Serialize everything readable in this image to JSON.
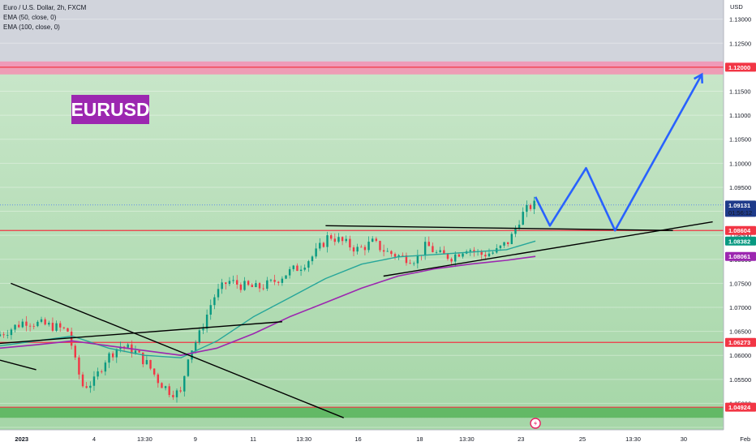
{
  "legend": {
    "title": "Euro / U.S. Dollar, 2h, FXCM",
    "ema50": "EMA (50, close, 0)",
    "ema100": "EMA (100, close, 0)"
  },
  "symbol_label": "EURUSD",
  "currency": "USD",
  "colors": {
    "bull": "#089981",
    "bear": "#f23645",
    "ema50": "#26a69a",
    "ema100": "#9c27b0",
    "level": "#f23645",
    "projection": "#2962ff",
    "bg_upper": "#d1d4dc",
    "bg_lower": "#a5d6a7",
    "zone_red": "#f48fb1",
    "zone_green": "#4caf50"
  },
  "chart_data": {
    "type": "candlestick",
    "ylim": [
      1.0445,
      1.134
    ],
    "x_range": [
      0,
      100
    ],
    "y_ticks": [
      "1.04500",
      "1.05000",
      "1.05500",
      "1.06000",
      "1.06500",
      "1.07000",
      "1.07500",
      "1.08000",
      "1.08500",
      "1.09000",
      "1.09500",
      "1.10000",
      "1.10500",
      "1.11000",
      "1.11500",
      "1.12000",
      "1.12500",
      "1.13000"
    ],
    "x_ticks": [
      {
        "label": "2023",
        "x": 3
      },
      {
        "label": "4",
        "x": 13
      },
      {
        "label": "13:30",
        "x": 20
      },
      {
        "label": "9",
        "x": 27
      },
      {
        "label": "11",
        "x": 35
      },
      {
        "label": "13:30",
        "x": 42
      },
      {
        "label": "16",
        "x": 49.5
      },
      {
        "label": "18",
        "x": 58
      },
      {
        "label": "13:30",
        "x": 64.5
      },
      {
        "label": "23",
        "x": 72
      },
      {
        "label": "25",
        "x": 80.5
      },
      {
        "label": "13:30",
        "x": 87.5
      },
      {
        "label": "30",
        "x": 94.5
      },
      {
        "label": "Feb",
        "x": 103
      }
    ],
    "price_tags": [
      {
        "label": "1.12000",
        "value": 1.12,
        "bg": "#f23645",
        "fg": "#ffffff"
      },
      {
        "label": "1.09131",
        "value": 1.0913,
        "bg": "#1e3a8a",
        "fg": "#ffffff",
        "sub": "01:56:12"
      },
      {
        "label": "1.08604",
        "value": 1.086,
        "bg": "#f23645",
        "fg": "#ffffff"
      },
      {
        "label": "1.08382",
        "value": 1.0838,
        "bg": "#089981",
        "fg": "#ffffff"
      },
      {
        "label": "1.08061",
        "value": 1.0806,
        "bg": "#9c27b0",
        "fg": "#ffffff"
      },
      {
        "label": "1.06273",
        "value": 1.0627,
        "bg": "#f23645",
        "fg": "#ffffff"
      },
      {
        "label": "1.04924",
        "value": 1.0492,
        "bg": "#f23645",
        "fg": "#ffffff"
      }
    ],
    "levels": [
      1.12,
      1.086,
      1.0627,
      1.0492
    ],
    "zones": [
      {
        "from": 1.1185,
        "to": 1.1212,
        "kind": "red"
      },
      {
        "from": 1.047,
        "to": 1.0492,
        "kind": "green"
      }
    ],
    "current_price": 1.0913,
    "path_points": [
      [
        0,
        1.064
      ],
      [
        2,
        1.0655
      ],
      [
        4,
        1.0672
      ],
      [
        6,
        1.0665
      ],
      [
        8,
        1.066
      ],
      [
        10,
        1.065
      ],
      [
        11,
        1.058
      ],
      [
        12,
        1.0535
      ],
      [
        13.5,
        1.0545
      ],
      [
        15,
        1.059
      ],
      [
        17,
        1.062
      ],
      [
        19,
        1.061
      ],
      [
        21,
        1.058
      ],
      [
        22.5,
        1.0545
      ],
      [
        24,
        1.0525
      ],
      [
        25.5,
        1.052
      ],
      [
        26.5,
        1.06
      ],
      [
        28,
        1.064
      ],
      [
        30,
        1.072
      ],
      [
        32,
        1.0755
      ],
      [
        34,
        1.0745
      ],
      [
        36,
        1.074
      ],
      [
        38,
        1.075
      ],
      [
        40,
        1.077
      ],
      [
        42,
        1.0785
      ],
      [
        44,
        1.081
      ],
      [
        46,
        1.085
      ],
      [
        48,
        1.0835
      ],
      [
        50,
        1.082
      ],
      [
        52,
        1.0835
      ],
      [
        54,
        1.0815
      ],
      [
        56,
        1.0805
      ],
      [
        58,
        1.08
      ],
      [
        59.5,
        1.083
      ],
      [
        61,
        1.081
      ],
      [
        63,
        1.0805
      ],
      [
        65,
        1.0825
      ],
      [
        67,
        1.081
      ],
      [
        69,
        1.0815
      ],
      [
        71,
        1.084
      ],
      [
        72.5,
        1.089
      ],
      [
        74,
        1.0913
      ]
    ],
    "ema50": [
      [
        0,
        1.062
      ],
      [
        5,
        1.063
      ],
      [
        10,
        1.064
      ],
      [
        15,
        1.0615
      ],
      [
        20,
        1.06
      ],
      [
        25,
        1.0595
      ],
      [
        30,
        1.063
      ],
      [
        35,
        1.068
      ],
      [
        40,
        1.072
      ],
      [
        45,
        1.076
      ],
      [
        50,
        1.079
      ],
      [
        55,
        1.0805
      ],
      [
        60,
        1.081
      ],
      [
        65,
        1.0815
      ],
      [
        70,
        1.082
      ],
      [
        74,
        1.0838
      ]
    ],
    "ema100": [
      [
        0,
        1.0615
      ],
      [
        5,
        1.0622
      ],
      [
        10,
        1.063
      ],
      [
        15,
        1.062
      ],
      [
        20,
        1.061
      ],
      [
        25,
        1.06
      ],
      [
        30,
        1.0615
      ],
      [
        35,
        1.0645
      ],
      [
        40,
        1.068
      ],
      [
        45,
        1.071
      ],
      [
        50,
        1.074
      ],
      [
        55,
        1.0765
      ],
      [
        60,
        1.078
      ],
      [
        65,
        1.079
      ],
      [
        70,
        1.0798
      ],
      [
        74,
        1.0806
      ]
    ],
    "trendlines": [
      {
        "from": [
          1.5,
          1.075
        ],
        "to": [
          47.5,
          1.047
        ]
      },
      {
        "from": [
          0,
          1.0625
        ],
        "to": [
          39,
          1.067
        ]
      },
      {
        "from": [
          0,
          1.059
        ],
        "to": [
          5,
          1.057
        ]
      },
      {
        "from": [
          45,
          1.087
        ],
        "to": [
          93,
          1.086
        ]
      },
      {
        "from": [
          53,
          1.0765
        ],
        "to": [
          98.5,
          1.0878
        ]
      }
    ],
    "projection": [
      [
        74,
        1.093
      ],
      [
        76,
        1.087
      ],
      [
        81,
        1.099
      ],
      [
        85,
        1.086
      ],
      [
        97,
        1.1185
      ]
    ]
  }
}
